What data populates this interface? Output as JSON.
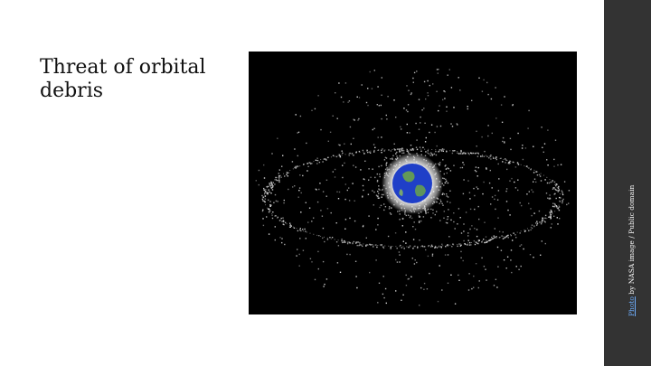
{
  "slide": {
    "title": "Threat of orbital debris"
  },
  "image": {
    "alt": "orbital debris around Earth",
    "colors": {
      "space": "#000000",
      "earth_ocean": "#1f3fc8",
      "earth_land": "#6aa34a",
      "debris": "#dcdcdc",
      "halo": "#ffffff"
    }
  },
  "credit": {
    "link_text": "Photo",
    "rest_text": " by NASA image / Public domain"
  },
  "colors": {
    "sidebar": "#333333",
    "background": "#ffffff",
    "title": "#111111",
    "link": "#6fb0ff"
  }
}
